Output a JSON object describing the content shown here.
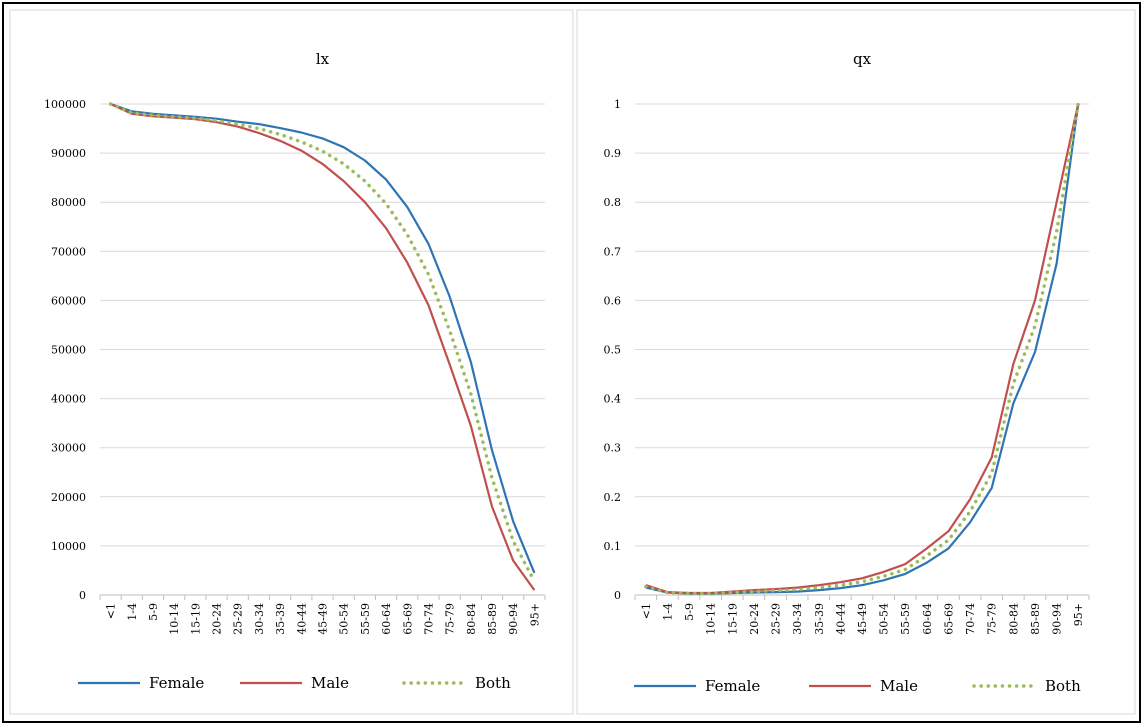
{
  "chart_data": [
    {
      "type": "line",
      "title": "lx",
      "categories": [
        "<1",
        "1-4",
        "5-9",
        "10-14",
        "15-19",
        "20-24",
        "25-29",
        "30-34",
        "35-39",
        "40-44",
        "45-49",
        "50-54",
        "55-59",
        "60-64",
        "65-69",
        "70-74",
        "75-79",
        "80-84",
        "85-89",
        "90-94",
        "95+"
      ],
      "ylim": [
        0,
        100000
      ],
      "yticks": [
        0,
        10000,
        20000,
        30000,
        40000,
        50000,
        60000,
        70000,
        80000,
        90000,
        100000
      ],
      "grid": true,
      "legend": "bottom",
      "series": [
        {
          "name": "Female",
          "color": "#2e75b6",
          "style": "solid",
          "values": [
            100000,
            98500,
            98000,
            97700,
            97400,
            97000,
            96400,
            95900,
            95100,
            94200,
            93000,
            91200,
            88500,
            84600,
            79000,
            71500,
            60800,
            47500,
            29500,
            15000,
            4500
          ]
        },
        {
          "name": "Male",
          "color": "#c0504d",
          "style": "solid",
          "values": [
            100000,
            98000,
            97500,
            97200,
            96900,
            96300,
            95400,
            94100,
            92500,
            90500,
            87800,
            84300,
            80000,
            74700,
            67700,
            59000,
            47000,
            34500,
            18000,
            7000,
            1000
          ]
        },
        {
          "name": "Both",
          "color": "#9bbb59",
          "style": "dotted",
          "values": [
            100000,
            98200,
            97700,
            97400,
            97100,
            96600,
            95900,
            95000,
            93800,
            92300,
            90400,
            87800,
            84300,
            79700,
            73400,
            65300,
            53900,
            41000,
            23800,
            11000,
            2800
          ]
        }
      ]
    },
    {
      "type": "line",
      "title": "qx",
      "categories": [
        "<1",
        "1-4",
        "5-9",
        "10-14",
        "15-19",
        "20-24",
        "25-29",
        "30-34",
        "35-39",
        "40-44",
        "45-49",
        "50-54",
        "55-59",
        "60-64",
        "65-69",
        "70-74",
        "75-79",
        "80-84",
        "85-89",
        "90-94",
        "95+"
      ],
      "ylim": [
        0,
        1
      ],
      "yticks": [
        0,
        0.1,
        0.2,
        0.3,
        0.4,
        0.5,
        0.6,
        0.7,
        0.8,
        0.9,
        1
      ],
      "grid": true,
      "legend": "bottom",
      "series": [
        {
          "name": "Female",
          "color": "#2e75b6",
          "style": "solid",
          "values": [
            0.015,
            0.005,
            0.003,
            0.003,
            0.004,
            0.005,
            0.006,
            0.007,
            0.01,
            0.014,
            0.02,
            0.03,
            0.043,
            0.066,
            0.095,
            0.148,
            0.218,
            0.39,
            0.495,
            0.675,
            1.0
          ]
        },
        {
          "name": "Male",
          "color": "#c0504d",
          "style": "solid",
          "values": [
            0.02,
            0.006,
            0.004,
            0.004,
            0.007,
            0.01,
            0.012,
            0.015,
            0.02,
            0.026,
            0.034,
            0.047,
            0.063,
            0.095,
            0.13,
            0.195,
            0.28,
            0.47,
            0.6,
            0.8,
            1.0
          ]
        },
        {
          "name": "Both",
          "color": "#9bbb59",
          "style": "dotted",
          "values": [
            0.017,
            0.005,
            0.003,
            0.003,
            0.005,
            0.007,
            0.009,
            0.011,
            0.015,
            0.02,
            0.027,
            0.038,
            0.052,
            0.08,
            0.112,
            0.17,
            0.248,
            0.43,
            0.548,
            0.74,
            1.0
          ]
        }
      ]
    }
  ]
}
